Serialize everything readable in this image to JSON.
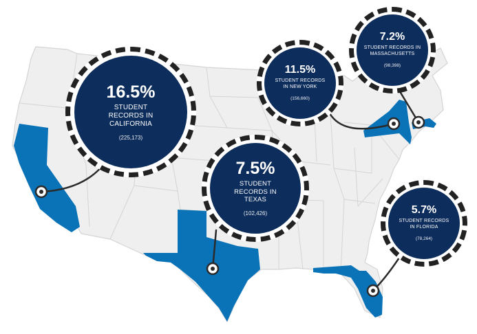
{
  "colors": {
    "map_fill": "#efefef",
    "state_border": "#d4d4d4",
    "highlight": "#0a73b8",
    "callout_bg": "#0d2d5c",
    "ring": "#222222",
    "connector": "#2a2a2a"
  },
  "states": [
    {
      "id": "california",
      "percent": "16.5%",
      "label": "STUDENT RECORDS IN CALIFORNIA",
      "count": "(225,173)",
      "value_percent": 16.5,
      "records": 225173
    },
    {
      "id": "texas",
      "percent": "7.5%",
      "label": "STUDENT RECORDS IN TEXAS",
      "count": "(102,426)",
      "value_percent": 7.5,
      "records": 102426
    },
    {
      "id": "new-york",
      "percent": "11.5%",
      "label": "STUDENT RECORDS IN NEW YORK",
      "count": "(156,660)",
      "value_percent": 11.5,
      "records": 156660
    },
    {
      "id": "massachusetts",
      "percent": "7.2%",
      "label": "STUDENT RECORDS IN MASSACHUSETTS",
      "count": "(98,398)",
      "value_percent": 7.2,
      "records": 98398
    },
    {
      "id": "florida",
      "percent": "5.7%",
      "label": "STUDENT RECORDS IN FLORIDA",
      "count": "(78,264)",
      "value_percent": 5.7,
      "records": 78264
    }
  ]
}
